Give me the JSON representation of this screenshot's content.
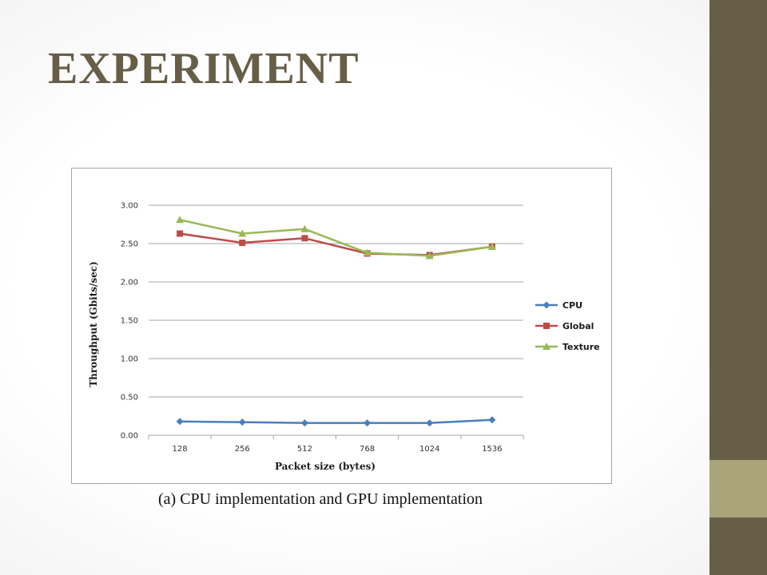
{
  "slide": {
    "title": "EXPERIMENT",
    "caption": "(a) CPU implementation and GPU implementation"
  },
  "colors": {
    "title": "#675e47",
    "sidebar": "#675e47",
    "sidebar_accent": "#a9a47a",
    "gridline": "#a6a6a6"
  },
  "chart_data": {
    "type": "line",
    "title": "",
    "xlabel": "Packet size (bytes)",
    "ylabel": "Throughput (Gbits/sec)",
    "categories": [
      "128",
      "256",
      "512",
      "768",
      "1024",
      "1536"
    ],
    "ylim": [
      0,
      3
    ],
    "yticks": [
      "0.00",
      "0.50",
      "1.00",
      "1.50",
      "2.00",
      "2.50",
      "3.00"
    ],
    "grid": true,
    "legend_position": "right",
    "series": [
      {
        "name": "CPU",
        "values": [
          0.18,
          0.17,
          0.16,
          0.16,
          0.16,
          0.2
        ],
        "color": "#4a7ebb",
        "marker": "diamond"
      },
      {
        "name": "Global",
        "values": [
          2.63,
          2.51,
          2.57,
          2.37,
          2.35,
          2.46
        ],
        "color": "#be4b48",
        "marker": "square"
      },
      {
        "name": "Texture",
        "values": [
          2.81,
          2.63,
          2.69,
          2.38,
          2.34,
          2.46
        ],
        "color": "#98b954",
        "marker": "triangle"
      }
    ]
  }
}
